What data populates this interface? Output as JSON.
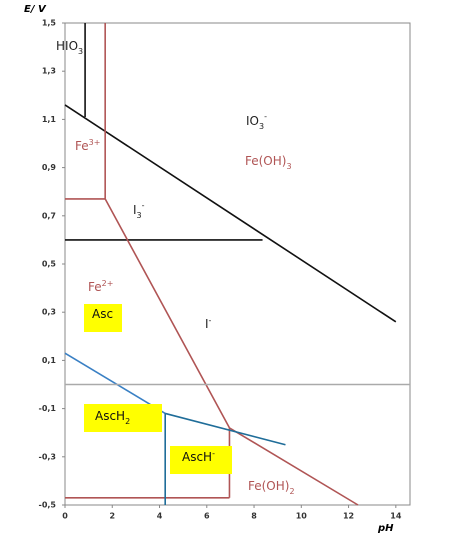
{
  "chart_data": {
    "type": "line",
    "xlabel": "pH",
    "ylabel": "E/ V",
    "xlim": [
      0,
      14.6
    ],
    "ylim": [
      -0.5,
      1.5
    ],
    "xticks": [
      0,
      2,
      4,
      6,
      8,
      10,
      12,
      14
    ],
    "yticks": [
      {
        "value": -0.5,
        "label": "-0,5"
      },
      {
        "value": -0.3,
        "label": "-0,3"
      },
      {
        "value": -0.1,
        "label": "-0,1"
      },
      {
        "value": 0.1,
        "label": "0,1"
      },
      {
        "value": 0.3,
        "label": "0,3"
      },
      {
        "value": 0.5,
        "label": "0,5"
      },
      {
        "value": 0.7,
        "label": "0,7"
      },
      {
        "value": 0.9,
        "label": "0,9"
      },
      {
        "value": 1.1,
        "label": "1,1"
      },
      {
        "value": 1.3,
        "label": "1,3"
      },
      {
        "value": 1.5,
        "label": "1,5"
      }
    ],
    "series": [
      {
        "color": "#111111",
        "x": [
          0.85,
          0.85
        ],
        "values": [
          1.5,
          1.11
        ]
      },
      {
        "color": "#111111",
        "x": [
          0,
          14
        ],
        "values": [
          1.16,
          0.26
        ]
      },
      {
        "color": "#111111",
        "x": [
          0,
          8.36
        ],
        "values": [
          0.6,
          0.6
        ]
      },
      {
        "color": "#b05555",
        "x": [
          1.7,
          1.7
        ],
        "values": [
          1.5,
          0.77
        ]
      },
      {
        "color": "#b05555",
        "x": [
          0,
          1.7
        ],
        "values": [
          0.77,
          0.77
        ]
      },
      {
        "color": "#b05555",
        "x": [
          1.7,
          6.96
        ],
        "values": [
          0.77,
          -0.18
        ]
      },
      {
        "color": "#b05555",
        "x": [
          6.96,
          6.96
        ],
        "values": [
          -0.18,
          -0.47
        ]
      },
      {
        "color": "#b05555",
        "x": [
          0,
          6.96
        ],
        "values": [
          -0.47,
          -0.47
        ]
      },
      {
        "color": "#b05555",
        "x": [
          6.96,
          12.4
        ],
        "values": [
          -0.18,
          -0.5
        ]
      },
      {
        "color": "#3a80c4",
        "x": [
          0,
          4.24
        ],
        "values": [
          0.13,
          -0.12
        ]
      },
      {
        "color": "#1f6d99",
        "x": [
          4.24,
          9.33
        ],
        "values": [
          -0.12,
          -0.25
        ]
      },
      {
        "color": "#1f6d99",
        "x": [
          4.24,
          4.24
        ],
        "values": [
          -0.12,
          -0.5
        ]
      },
      {
        "color": "#aaaaaa",
        "x": [
          0,
          14.6
        ],
        "values": [
          0,
          0
        ]
      }
    ],
    "annotations": [
      {
        "text": "HIO",
        "sub": "3"
      },
      {
        "text": "IO",
        "sub": "3",
        "sup": "-"
      },
      {
        "text": "Fe",
        "sup": "3+"
      },
      {
        "text": "Fe(OH)",
        "sub": "3"
      },
      {
        "text": "I",
        "sub": "3",
        "sup": "-"
      },
      {
        "text": "Fe",
        "sup": "2+"
      },
      {
        "text": "Asc"
      },
      {
        "text": "I",
        "sup": "-"
      },
      {
        "text": "AscH",
        "sub": "2"
      },
      {
        "text": "AscH",
        "sup": "-"
      },
      {
        "text": "Fe(OH)",
        "sub": "2"
      }
    ]
  }
}
